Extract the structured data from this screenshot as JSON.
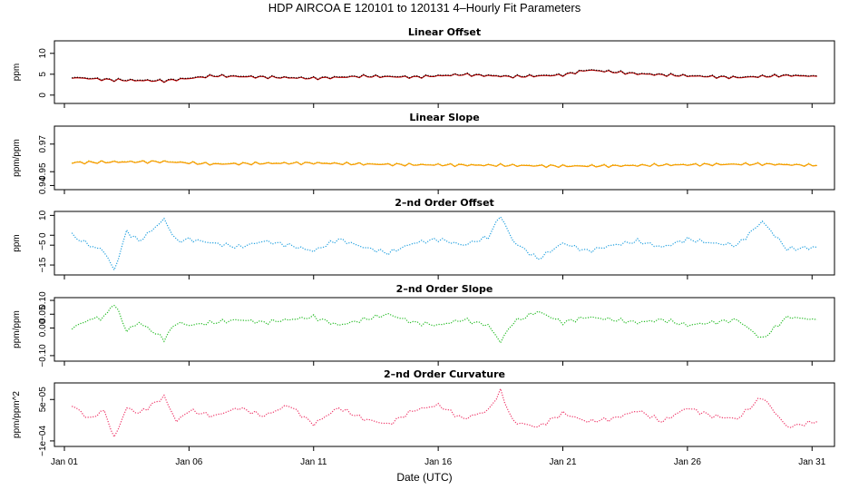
{
  "figure": {
    "title": "HDP    AIRCOA E    120101 to 120131    4–Hourly Fit Parameters",
    "xlabel": "Date (UTC)"
  },
  "chart_data": [
    {
      "type": "line",
      "title": "Linear Offset",
      "ylabel": "ppm",
      "yticks": [
        "0",
        "5",
        "10"
      ],
      "ylim": [
        -2,
        13
      ],
      "xlim": [
        0.6,
        31.9
      ],
      "grid": false,
      "series": [
        {
          "name": "",
          "color": "#cc0000",
          "style": "solid",
          "x": [
            1.3,
            3,
            5,
            7,
            9,
            11,
            13,
            15,
            17,
            19,
            21,
            22,
            24,
            26,
            28,
            30,
            31.2
          ],
          "y": [
            4.2,
            3.6,
            3.4,
            4.6,
            4.3,
            4.0,
            4.5,
            4.3,
            4.9,
            4.4,
            4.8,
            6.0,
            5.1,
            4.6,
            4.2,
            4.7,
            4.5
          ]
        },
        {
          "name": "",
          "color": "#000000",
          "style": "dotted",
          "x": [
            1.3,
            3,
            5,
            7,
            9,
            11,
            13,
            15,
            17,
            19,
            21,
            22,
            24,
            26,
            28,
            30,
            31.2
          ],
          "y": [
            4.3,
            3.7,
            3.5,
            4.7,
            4.4,
            4.1,
            4.6,
            4.4,
            5.0,
            4.5,
            4.9,
            6.1,
            5.2,
            4.7,
            4.3,
            4.8,
            4.6
          ]
        }
      ]
    },
    {
      "type": "line",
      "title": "Linear Slope",
      "ylabel": "ppm/ppm",
      "yticks": [
        "0.94",
        "0.95",
        "0.97"
      ],
      "ylim": [
        0.937,
        0.983
      ],
      "xlim": [
        0.6,
        31.9
      ],
      "grid": false,
      "series": [
        {
          "name": "",
          "color": "#ff8c00",
          "style": "solid",
          "x": [
            1.3,
            3,
            5,
            7,
            9,
            11,
            13,
            15,
            17,
            19,
            21,
            23,
            25,
            27,
            29,
            31.2
          ],
          "y": [
            0.9565,
            0.957,
            0.9572,
            0.9555,
            0.956,
            0.9562,
            0.9555,
            0.955,
            0.9548,
            0.9545,
            0.954,
            0.9542,
            0.9548,
            0.9552,
            0.9555,
            0.9545
          ]
        },
        {
          "name": "",
          "color": "#e0c000",
          "style": "dotted",
          "x": [
            1.3,
            3,
            5,
            7,
            9,
            11,
            13,
            15,
            17,
            19,
            21,
            23,
            25,
            27,
            29,
            31.2
          ],
          "y": [
            0.9568,
            0.9573,
            0.9575,
            0.9558,
            0.9563,
            0.9565,
            0.9558,
            0.9553,
            0.9551,
            0.9548,
            0.9543,
            0.9545,
            0.9551,
            0.9555,
            0.9558,
            0.9548
          ]
        }
      ]
    },
    {
      "type": "line",
      "title": "2–nd Order Offset",
      "ylabel": "ppm",
      "yticks": [
        "−15",
        "−5",
        "0",
        "10"
      ],
      "ylim": [
        -20,
        12
      ],
      "xlim": [
        0.6,
        31.9
      ],
      "grid": false,
      "series": [
        {
          "name": "",
          "color": "#1f9fdf",
          "style": "dotted",
          "x": [
            1.3,
            2,
            2.6,
            3,
            3.5,
            4,
            5,
            5.5,
            6,
            7,
            8,
            9,
            10,
            11,
            12,
            13,
            14,
            15,
            16,
            17,
            18,
            18.5,
            19,
            20,
            21,
            22,
            23,
            24,
            25,
            26,
            27,
            28,
            29,
            30,
            31.2
          ],
          "y": [
            0,
            -5,
            -8,
            -18,
            2,
            -3,
            8,
            -3,
            -2,
            -4,
            -6,
            -3,
            -5,
            -8,
            -2,
            -6,
            -9,
            -4,
            -2,
            -5,
            -1,
            10,
            -3,
            -12,
            -4,
            -8,
            -5,
            -3,
            -6,
            -2,
            -4,
            -5,
            7,
            -7,
            -6
          ]
        }
      ]
    },
    {
      "type": "line",
      "title": "2–nd Order Slope",
      "ylabel": "ppm/ppm",
      "yticks": [
        "−0.10",
        "0.00",
        "0.05",
        "0.10"
      ],
      "ylim": [
        -0.12,
        0.11
      ],
      "xlim": [
        0.6,
        31.9
      ],
      "grid": false,
      "series": [
        {
          "name": "",
          "color": "#22bb22",
          "style": "dotted",
          "x": [
            1.3,
            2,
            2.6,
            3,
            3.5,
            4,
            5,
            5.5,
            6,
            7,
            8,
            9,
            10,
            11,
            12,
            13,
            14,
            15,
            16,
            17,
            18,
            18.5,
            19,
            20,
            21,
            22,
            23,
            24,
            25,
            26,
            27,
            28,
            29,
            30,
            31.2
          ],
          "y": [
            0.0,
            0.03,
            0.04,
            0.09,
            -0.01,
            0.02,
            -0.04,
            0.02,
            0.01,
            0.02,
            0.03,
            0.02,
            0.03,
            0.04,
            0.01,
            0.03,
            0.05,
            0.02,
            0.01,
            0.03,
            0.01,
            -0.05,
            0.02,
            0.06,
            0.02,
            0.04,
            0.03,
            0.02,
            0.03,
            0.01,
            0.02,
            0.03,
            -0.04,
            0.04,
            0.03
          ]
        }
      ]
    },
    {
      "type": "line",
      "title": "2–nd Order Curvature",
      "ylabel": "ppm/ppm^2",
      "yticks": [
        "−1e−04",
        "5e−05"
      ],
      "ylim": [
        -0.00012,
        0.00011
      ],
      "xlim": [
        0.6,
        31.9
      ],
      "grid": false,
      "series": [
        {
          "name": "",
          "color": "#ee3366",
          "style": "dotted",
          "x": [
            1.3,
            2,
            2.6,
            3,
            3.5,
            4,
            5,
            5.5,
            6,
            7,
            8,
            9,
            10,
            11,
            12,
            13,
            14,
            15,
            16,
            17,
            18,
            18.5,
            19,
            20,
            21,
            22,
            23,
            24,
            25,
            26,
            27,
            28,
            29,
            30,
            31.2
          ],
          "y": [
            3e-05,
            -2e-05,
            1e-05,
            -9e-05,
            2e-05,
            0.0,
            6e-05,
            -3e-05,
            1e-05,
            -1e-05,
            2e-05,
            -1e-05,
            3e-05,
            -4e-05,
            2e-05,
            -2e-05,
            -4e-05,
            1e-05,
            3e-05,
            -2e-05,
            1e-05,
            8e-05,
            -3e-05,
            -5e-05,
            0.0,
            -3e-05,
            -2e-05,
            1e-05,
            -3e-05,
            2e-05,
            -1e-05,
            -2e-05,
            6e-05,
            -5e-05,
            -3e-05
          ]
        }
      ]
    }
  ],
  "xaxis": {
    "ticks": [
      {
        "value": 1,
        "label": "Jan 01"
      },
      {
        "value": 6,
        "label": "Jan 06"
      },
      {
        "value": 11,
        "label": "Jan 11"
      },
      {
        "value": 16,
        "label": "Jan 16"
      },
      {
        "value": 21,
        "label": "Jan 21"
      },
      {
        "value": 26,
        "label": "Jan 26"
      },
      {
        "value": 31,
        "label": "Jan 31"
      }
    ]
  }
}
